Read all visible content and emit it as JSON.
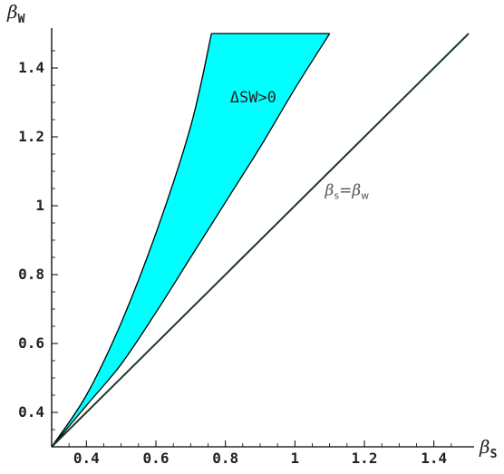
{
  "chart_data": {
    "type": "area",
    "xlabel": {
      "main": "β",
      "sub": "S"
    },
    "ylabel": {
      "main": "β",
      "sub": "W"
    },
    "xlim": [
      0.3,
      1.5
    ],
    "ylim": [
      0.3,
      1.5
    ],
    "x_ticks": [
      0.4,
      0.6,
      0.8,
      1.0,
      1.2,
      1.4
    ],
    "x_tick_labels": [
      "0.4",
      "0.6",
      "0.8",
      "1",
      "1.2",
      "1.4"
    ],
    "y_ticks": [
      0.4,
      0.6,
      0.8,
      1.0,
      1.2,
      1.4
    ],
    "y_tick_labels": [
      "0.4",
      "0.6",
      "0.8",
      "1",
      "1.2",
      "1.4"
    ],
    "grid": false,
    "colors": {
      "region_fill": "#00ffff",
      "line": "#1a3a2a",
      "axis": "#000000"
    },
    "series": [
      {
        "kind": "region",
        "upper_boundary": [
          [
            0.3,
            0.3
          ],
          [
            0.4,
            0.45
          ],
          [
            0.5,
            0.66
          ],
          [
            0.6,
            0.92
          ],
          [
            0.7,
            1.23
          ],
          [
            0.76,
            1.5
          ]
        ],
        "lower_boundary": [
          [
            0.3,
            0.3
          ],
          [
            0.4,
            0.42
          ],
          [
            0.5,
            0.54
          ],
          [
            0.6,
            0.69
          ],
          [
            0.7,
            0.85
          ],
          [
            0.8,
            1.01
          ],
          [
            0.9,
            1.17
          ],
          [
            1.0,
            1.34
          ],
          [
            1.1,
            1.5
          ]
        ]
      },
      {
        "kind": "line",
        "points": [
          [
            0.3,
            0.3
          ],
          [
            1.5,
            1.5
          ]
        ]
      }
    ],
    "annotations": [
      {
        "text": "ΔSW>0",
        "x": 0.88,
        "y": 1.3
      },
      {
        "main1": "β",
        "sub1": "s",
        "eq": "=",
        "main2": "β",
        "sub2": "w",
        "x": 1.15,
        "y": 1.03
      }
    ]
  }
}
